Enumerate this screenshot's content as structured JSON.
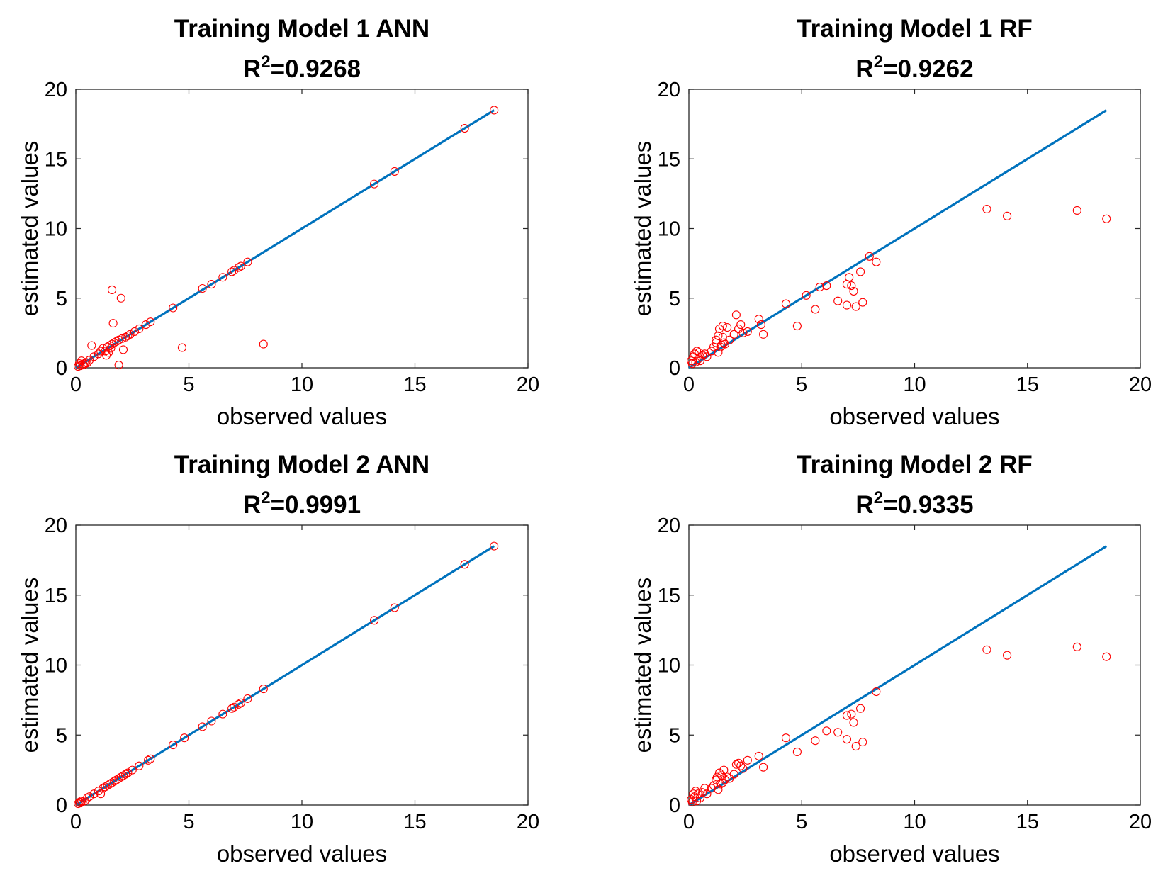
{
  "chart_data": [
    {
      "type": "scatter",
      "title": "Training Model 1 ANN",
      "r2_prefix": "R",
      "r2_exponent": "2",
      "r2_value": "=0.9268",
      "xlabel": "observed values",
      "ylabel": "estimated values",
      "xlim": [
        0,
        20
      ],
      "ylim": [
        0,
        20
      ],
      "xticks": [
        "0",
        "5",
        "10",
        "15",
        "20"
      ],
      "yticks": [
        "0",
        "5",
        "10",
        "15",
        "20"
      ],
      "grid": false,
      "line_color": "#0072BD",
      "marker_color": "#FF0000",
      "fit_line": {
        "x": [
          0,
          18.5
        ],
        "y": [
          0,
          18.5
        ]
      },
      "points": [
        [
          0.1,
          0.1
        ],
        [
          0.15,
          0.3
        ],
        [
          0.2,
          0.15
        ],
        [
          0.25,
          0.5
        ],
        [
          0.3,
          0.25
        ],
        [
          0.35,
          0.2
        ],
        [
          0.4,
          0.3
        ],
        [
          0.45,
          0.4
        ],
        [
          0.5,
          0.35
        ],
        [
          0.6,
          0.55
        ],
        [
          0.7,
          1.6
        ],
        [
          0.8,
          0.8
        ],
        [
          1.0,
          1.0
        ],
        [
          1.1,
          1.2
        ],
        [
          1.2,
          1.4
        ],
        [
          1.3,
          1.2
        ],
        [
          1.35,
          0.9
        ],
        [
          1.4,
          1.5
        ],
        [
          1.45,
          1.1
        ],
        [
          1.5,
          1.6
        ],
        [
          1.55,
          1.4
        ],
        [
          1.6,
          1.7
        ],
        [
          1.6,
          5.6
        ],
        [
          1.65,
          3.2
        ],
        [
          1.7,
          1.8
        ],
        [
          1.8,
          1.9
        ],
        [
          1.9,
          2.0
        ],
        [
          1.9,
          0.2
        ],
        [
          2.0,
          5.0
        ],
        [
          2.05,
          2.1
        ],
        [
          2.1,
          1.3
        ],
        [
          2.2,
          2.2
        ],
        [
          2.3,
          2.3
        ],
        [
          2.4,
          2.4
        ],
        [
          2.6,
          2.6
        ],
        [
          2.8,
          2.8
        ],
        [
          3.1,
          3.1
        ],
        [
          3.3,
          3.3
        ],
        [
          4.3,
          4.3
        ],
        [
          4.7,
          1.45
        ],
        [
          5.6,
          5.7
        ],
        [
          6.0,
          6.0
        ],
        [
          6.5,
          6.5
        ],
        [
          6.9,
          6.9
        ],
        [
          7.0,
          7.0
        ],
        [
          7.2,
          7.2
        ],
        [
          7.3,
          7.3
        ],
        [
          7.6,
          7.6
        ],
        [
          8.3,
          1.7
        ],
        [
          13.2,
          13.2
        ],
        [
          14.1,
          14.1
        ],
        [
          17.2,
          17.2
        ],
        [
          18.5,
          18.5
        ]
      ]
    },
    {
      "type": "scatter",
      "title": "Training Model 1 RF",
      "r2_prefix": "R",
      "r2_exponent": "2",
      "r2_value": "=0.9262",
      "xlabel": "observed values",
      "ylabel": "estimated values",
      "xlim": [
        0,
        20
      ],
      "ylim": [
        0,
        20
      ],
      "xticks": [
        "0",
        "5",
        "10",
        "15",
        "20"
      ],
      "yticks": [
        "0",
        "5",
        "10",
        "15",
        "20"
      ],
      "grid": false,
      "line_color": "#0072BD",
      "marker_color": "#FF0000",
      "fit_line": {
        "x": [
          0,
          18.5
        ],
        "y": [
          0,
          18.5
        ]
      },
      "points": [
        [
          0.1,
          0.5
        ],
        [
          0.15,
          0.3
        ],
        [
          0.2,
          0.8
        ],
        [
          0.25,
          1.0
        ],
        [
          0.3,
          0.4
        ],
        [
          0.35,
          1.2
        ],
        [
          0.4,
          0.6
        ],
        [
          0.45,
          1.1
        ],
        [
          0.5,
          0.5
        ],
        [
          0.6,
          0.9
        ],
        [
          0.7,
          1.0
        ],
        [
          0.8,
          0.8
        ],
        [
          1.0,
          1.2
        ],
        [
          1.1,
          1.5
        ],
        [
          1.2,
          1.8
        ],
        [
          1.2,
          2.0
        ],
        [
          1.3,
          1.1
        ],
        [
          1.3,
          2.3
        ],
        [
          1.35,
          2.8
        ],
        [
          1.4,
          1.5
        ],
        [
          1.45,
          1.6
        ],
        [
          1.5,
          2.2
        ],
        [
          1.5,
          3.0
        ],
        [
          1.55,
          1.8
        ],
        [
          1.6,
          1.7
        ],
        [
          1.7,
          2.9
        ],
        [
          1.8,
          2.0
        ],
        [
          2.0,
          2.4
        ],
        [
          2.1,
          3.8
        ],
        [
          2.2,
          2.8
        ],
        [
          2.3,
          3.1
        ],
        [
          2.4,
          2.5
        ],
        [
          2.6,
          2.6
        ],
        [
          3.1,
          3.5
        ],
        [
          3.2,
          3.1
        ],
        [
          3.3,
          2.4
        ],
        [
          4.3,
          4.6
        ],
        [
          4.8,
          3.0
        ],
        [
          5.2,
          5.2
        ],
        [
          5.6,
          4.2
        ],
        [
          5.8,
          5.8
        ],
        [
          6.1,
          5.9
        ],
        [
          6.6,
          4.8
        ],
        [
          7.0,
          4.5
        ],
        [
          7.0,
          6.0
        ],
        [
          7.1,
          6.5
        ],
        [
          7.2,
          5.9
        ],
        [
          7.3,
          5.5
        ],
        [
          7.4,
          4.4
        ],
        [
          7.6,
          6.9
        ],
        [
          7.7,
          4.7
        ],
        [
          8.0,
          8.0
        ],
        [
          8.3,
          7.6
        ],
        [
          13.2,
          11.4
        ],
        [
          14.1,
          10.9
        ],
        [
          17.2,
          11.3
        ],
        [
          18.5,
          10.7
        ]
      ]
    },
    {
      "type": "scatter",
      "title": "Training Model 2 ANN",
      "r2_prefix": "R",
      "r2_exponent": "2",
      "r2_value": "=0.9991",
      "xlabel": "observed values",
      "ylabel": "estimated values",
      "xlim": [
        0,
        20
      ],
      "ylim": [
        0,
        20
      ],
      "xticks": [
        "0",
        "5",
        "10",
        "15",
        "20"
      ],
      "yticks": [
        "0",
        "5",
        "10",
        "15",
        "20"
      ],
      "grid": false,
      "line_color": "#0072BD",
      "marker_color": "#FF0000",
      "fit_line": {
        "x": [
          0,
          18.5
        ],
        "y": [
          0,
          18.5
        ]
      },
      "points": [
        [
          0.1,
          0.1
        ],
        [
          0.15,
          0.2
        ],
        [
          0.2,
          0.15
        ],
        [
          0.25,
          0.3
        ],
        [
          0.3,
          0.25
        ],
        [
          0.4,
          0.3
        ],
        [
          0.5,
          0.5
        ],
        [
          0.6,
          0.6
        ],
        [
          0.8,
          0.8
        ],
        [
          1.0,
          1.0
        ],
        [
          1.1,
          0.8
        ],
        [
          1.2,
          1.2
        ],
        [
          1.3,
          1.3
        ],
        [
          1.4,
          1.4
        ],
        [
          1.5,
          1.5
        ],
        [
          1.6,
          1.6
        ],
        [
          1.7,
          1.7
        ],
        [
          1.8,
          1.8
        ],
        [
          1.9,
          1.9
        ],
        [
          2.0,
          2.0
        ],
        [
          2.1,
          2.1
        ],
        [
          2.2,
          2.2
        ],
        [
          2.3,
          2.3
        ],
        [
          2.5,
          2.5
        ],
        [
          2.8,
          2.8
        ],
        [
          3.2,
          3.2
        ],
        [
          3.3,
          3.3
        ],
        [
          4.3,
          4.3
        ],
        [
          4.8,
          4.8
        ],
        [
          5.6,
          5.6
        ],
        [
          6.0,
          6.0
        ],
        [
          6.5,
          6.5
        ],
        [
          6.9,
          6.9
        ],
        [
          7.0,
          7.0
        ],
        [
          7.2,
          7.2
        ],
        [
          7.3,
          7.3
        ],
        [
          7.6,
          7.6
        ],
        [
          8.3,
          8.3
        ],
        [
          13.2,
          13.2
        ],
        [
          14.1,
          14.1
        ],
        [
          17.2,
          17.2
        ],
        [
          18.5,
          18.5
        ]
      ]
    },
    {
      "type": "scatter",
      "title": "Training Model 2 RF",
      "r2_prefix": "R",
      "r2_exponent": "2",
      "r2_value": "=0.9335",
      "xlabel": "observed values",
      "ylabel": "estimated values",
      "xlim": [
        0,
        20
      ],
      "ylim": [
        0,
        20
      ],
      "xticks": [
        "0",
        "5",
        "10",
        "15",
        "20"
      ],
      "yticks": [
        "0",
        "5",
        "10",
        "15",
        "20"
      ],
      "grid": false,
      "line_color": "#0072BD",
      "marker_color": "#FF0000",
      "fit_line": {
        "x": [
          0,
          18.5
        ],
        "y": [
          0,
          18.5
        ]
      },
      "points": [
        [
          0.1,
          0.4
        ],
        [
          0.15,
          0.2
        ],
        [
          0.2,
          0.8
        ],
        [
          0.25,
          0.6
        ],
        [
          0.3,
          1.0
        ],
        [
          0.35,
          0.3
        ],
        [
          0.4,
          0.8
        ],
        [
          0.5,
          0.5
        ],
        [
          0.6,
          0.9
        ],
        [
          0.7,
          1.2
        ],
        [
          0.8,
          0.8
        ],
        [
          1.0,
          1.2
        ],
        [
          1.1,
          1.4
        ],
        [
          1.2,
          1.8
        ],
        [
          1.25,
          2.0
        ],
        [
          1.3,
          1.1
        ],
        [
          1.35,
          2.3
        ],
        [
          1.4,
          1.5
        ],
        [
          1.45,
          2.1
        ],
        [
          1.5,
          1.6
        ],
        [
          1.55,
          2.5
        ],
        [
          1.6,
          1.8
        ],
        [
          1.7,
          2.0
        ],
        [
          1.8,
          1.9
        ],
        [
          2.0,
          2.2
        ],
        [
          2.1,
          2.9
        ],
        [
          2.2,
          3.0
        ],
        [
          2.3,
          2.8
        ],
        [
          2.4,
          2.6
        ],
        [
          2.6,
          3.2
        ],
        [
          3.1,
          3.5
        ],
        [
          3.3,
          2.7
        ],
        [
          4.3,
          4.8
        ],
        [
          4.8,
          3.8
        ],
        [
          5.6,
          4.6
        ],
        [
          6.1,
          5.3
        ],
        [
          6.6,
          5.2
        ],
        [
          7.0,
          4.7
        ],
        [
          7.0,
          6.4
        ],
        [
          7.2,
          6.5
        ],
        [
          7.3,
          5.9
        ],
        [
          7.4,
          4.2
        ],
        [
          7.6,
          6.9
        ],
        [
          7.7,
          4.5
        ],
        [
          8.3,
          8.1
        ],
        [
          13.2,
          11.1
        ],
        [
          14.1,
          10.7
        ],
        [
          17.2,
          11.3
        ],
        [
          18.5,
          10.6
        ]
      ]
    }
  ]
}
